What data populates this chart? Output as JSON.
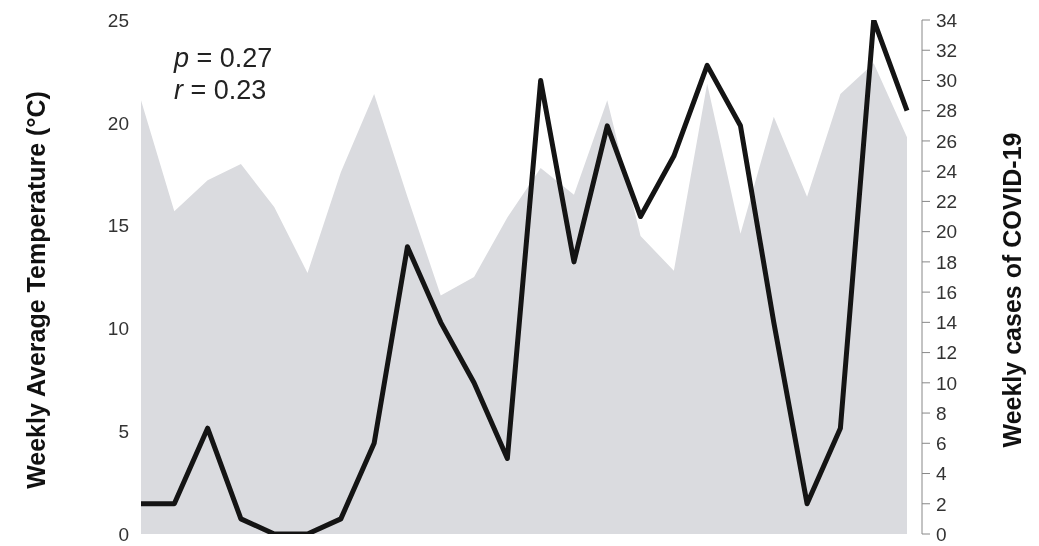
{
  "chart_data": {
    "type": "line",
    "categories": [
      null,
      null,
      null,
      null,
      null,
      null,
      null,
      null,
      null,
      null,
      null,
      null,
      null,
      null,
      null,
      null,
      null,
      null,
      null,
      null,
      null,
      null,
      null,
      null
    ],
    "ylabel": "Weekly Average Temperature (°C)",
    "y2label": "Weekly cases of COVID-19",
    "annotations": [
      "p = 0.27",
      "r = 0.23"
    ],
    "series": [
      {
        "type": "area",
        "color": "#dadbdf",
        "values": [
          21.1,
          15.7,
          17.2,
          18.0,
          15.9,
          12.7,
          17.6,
          21.4,
          16.4,
          11.6,
          12.5,
          15.4,
          17.8,
          16.5,
          21.1,
          14.5,
          12.8,
          21.9,
          14.6,
          20.3,
          16.4,
          21.4,
          22.9,
          19.3
        ]
      },
      {
        "axis": "y2",
        "color": "#141414",
        "values": [
          2,
          2,
          7,
          1,
          0,
          0,
          1,
          6,
          19,
          14,
          10,
          5,
          30,
          18,
          27,
          21,
          25,
          31,
          27,
          14,
          2,
          7,
          34,
          28
        ]
      }
    ],
    "ylim": [
      0,
      25
    ],
    "yticks": [
      0,
      5,
      10,
      15,
      20,
      25
    ],
    "y2lim": [
      0,
      34
    ],
    "y2ticks": [
      0,
      2,
      4,
      6,
      8,
      10,
      12,
      14,
      16,
      18,
      20,
      22,
      24,
      26,
      28,
      30,
      32,
      34
    ],
    "grid": false,
    "legend": false,
    "marker": "none",
    "line_style": "solid"
  }
}
